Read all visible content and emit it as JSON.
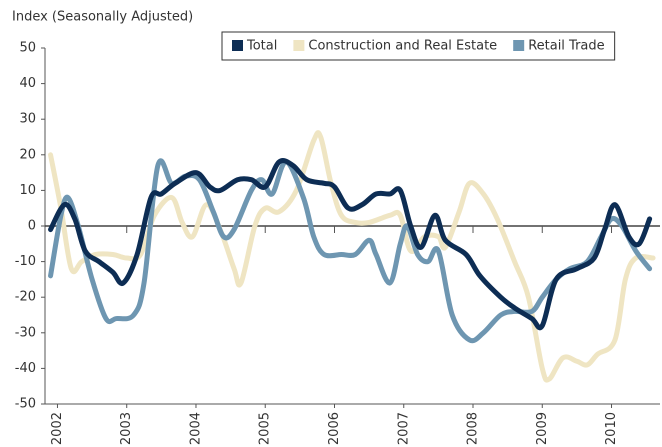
{
  "chart_data": {
    "type": "line",
    "y_axis_label": "Index (Seasonally Adjusted)",
    "xlim": [
      2001.82,
      2010.7
    ],
    "xticks": [
      2002,
      2003,
      2004,
      2005,
      2006,
      2007,
      2008,
      2009,
      2010
    ],
    "ylim": [
      -50,
      50
    ],
    "yticks": [
      -50,
      -40,
      -30,
      -20,
      -10,
      0,
      10,
      20,
      30,
      40,
      50
    ],
    "legend": "top-right",
    "series": [
      {
        "name": "Total",
        "color": "#0d2d54",
        "x": [
          2001.9,
          2002.1,
          2002.25,
          2002.4,
          2002.6,
          2002.8,
          2002.95,
          2003.15,
          2003.35,
          2003.5,
          2003.7,
          2004.0,
          2004.2,
          2004.35,
          2004.6,
          2004.8,
          2005.0,
          2005.2,
          2005.4,
          2005.6,
          2005.85,
          2006.0,
          2006.2,
          2006.4,
          2006.6,
          2006.8,
          2006.95,
          2007.1,
          2007.25,
          2007.45,
          2007.6,
          2007.9,
          2008.1,
          2008.4,
          2008.6,
          2008.85,
          2009.0,
          2009.2,
          2009.5,
          2009.75,
          2009.9,
          2010.05,
          2010.25,
          2010.4,
          2010.55
        ],
        "values": [
          -1,
          6,
          2,
          -7,
          -10,
          -13,
          -16,
          -8,
          8,
          9,
          12,
          15,
          11,
          10,
          13,
          13,
          11,
          18,
          17,
          13,
          12,
          11,
          5,
          6,
          9,
          9,
          10,
          0,
          -6,
          3,
          -4,
          -8,
          -14,
          -20,
          -23,
          -26,
          -28,
          -15,
          -12,
          -9,
          -1,
          6,
          -3,
          -5,
          2
        ]
      },
      {
        "name": "Construction and Real Estate",
        "color": "#efe5c3",
        "x": [
          2001.9,
          2002.05,
          2002.2,
          2002.35,
          2002.55,
          2002.8,
          2003.0,
          2003.2,
          2003.4,
          2003.65,
          2003.8,
          2003.95,
          2004.15,
          2004.35,
          2004.55,
          2004.65,
          2004.85,
          2005.0,
          2005.2,
          2005.45,
          2005.7,
          2005.8,
          2005.95,
          2006.1,
          2006.3,
          2006.5,
          2006.8,
          2006.95,
          2007.1,
          2007.3,
          2007.5,
          2007.6,
          2007.8,
          2007.95,
          2008.15,
          2008.35,
          2008.6,
          2008.8,
          2009.0,
          2009.1,
          2009.3,
          2009.5,
          2009.65,
          2009.8,
          2010.05,
          2010.2,
          2010.35,
          2010.6
        ],
        "values": [
          20,
          5,
          -12,
          -10,
          -8,
          -8,
          -9,
          -8,
          3,
          8,
          1,
          -3,
          6,
          -1,
          -12,
          -16,
          0,
          5,
          4,
          10,
          24,
          25,
          12,
          3,
          1,
          1,
          3,
          3,
          -7,
          -3,
          -3,
          -6,
          4,
          12,
          9,
          2,
          -10,
          -20,
          -40,
          -43,
          -37,
          -38,
          -39,
          -36,
          -32,
          -15,
          -9,
          -9
        ]
      },
      {
        "name": "Retail Trade",
        "color": "#6e96b1",
        "x": [
          2001.9,
          2002.05,
          2002.15,
          2002.3,
          2002.5,
          2002.7,
          2002.85,
          2003.1,
          2003.25,
          2003.45,
          2003.65,
          2003.85,
          2004.05,
          2004.25,
          2004.4,
          2004.55,
          2004.8,
          2004.95,
          2005.1,
          2005.3,
          2005.55,
          2005.7,
          2005.85,
          2006.1,
          2006.3,
          2006.5,
          2006.6,
          2006.8,
          2006.95,
          2007.05,
          2007.2,
          2007.35,
          2007.5,
          2007.7,
          2007.95,
          2008.15,
          2008.4,
          2008.6,
          2008.85,
          2009.0,
          2009.2,
          2009.4,
          2009.65,
          2009.85,
          2010.0,
          2010.15,
          2010.35,
          2010.55
        ],
        "values": [
          -14,
          3,
          8,
          0,
          -15,
          -26,
          -26,
          -25,
          -16,
          17,
          12,
          14,
          13,
          4,
          -3,
          -1,
          10,
          13,
          9,
          18,
          8,
          -3,
          -8,
          -8,
          -8,
          -4,
          -8,
          -16,
          -5,
          0,
          -8,
          -10,
          -7,
          -25,
          -32,
          -30,
          -25,
          -24,
          -24,
          -20,
          -15,
          -12,
          -10,
          -3,
          2,
          0,
          -7,
          -12
        ]
      }
    ]
  }
}
